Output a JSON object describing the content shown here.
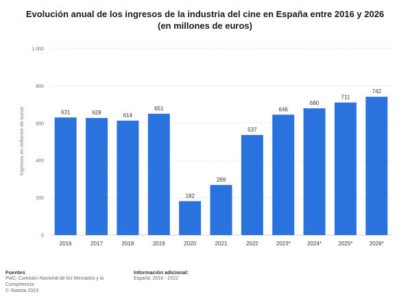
{
  "title": {
    "line1": "Evolución anual de los ingresos de la industria del cine en España entre 2016 y 2026",
    "line2": "(en millones de euros)"
  },
  "chart_data": {
    "type": "bar",
    "title": "Evolución anual de los ingresos de la industria del cine en España entre 2016 y 2026 (en millones de euros)",
    "categories": [
      "2016",
      "2017",
      "2018",
      "2019",
      "2020",
      "2021",
      "2022",
      "2023*",
      "2024*",
      "2025*",
      "2026*"
    ],
    "values": [
      631,
      628,
      614,
      651,
      182,
      269,
      537,
      646,
      680,
      711,
      742
    ],
    "value_labels": [
      "631",
      "628",
      "614",
      "651",
      "182",
      "269",
      "537",
      "646",
      "680",
      "711",
      "742"
    ],
    "xlabel": "",
    "ylabel": "Ingresos en millones de euros",
    "ylim": [
      0,
      1000
    ],
    "yticks": [
      0,
      200,
      400,
      600,
      800,
      1000
    ],
    "ytick_labels": [
      "0",
      "200",
      "400",
      "600",
      "800",
      "1.000"
    ],
    "grid": true,
    "bar_color": "#2a73de"
  },
  "footer": {
    "sources_heading": "Fuentes",
    "sources_line1": "PwC; Comisión Nacional de los Mercados y la",
    "sources_line2": "Competencia",
    "copyright": "© Statista 2023",
    "info_heading": "Información adicional:",
    "info_text": "España; 2016 - 2022"
  }
}
